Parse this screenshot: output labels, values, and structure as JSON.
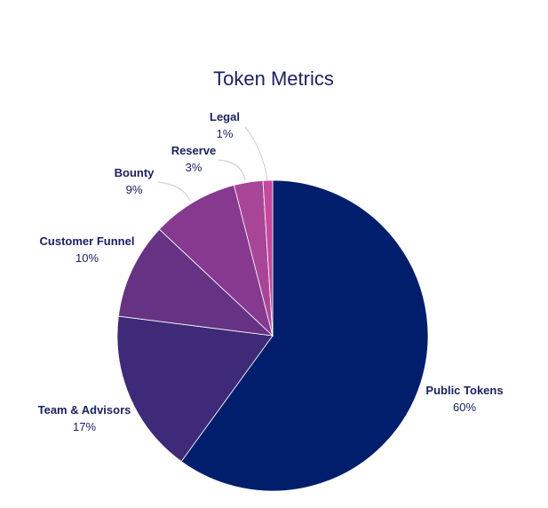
{
  "chart_data": {
    "type": "pie",
    "title": "Token Metrics",
    "start_angle_deg": 0,
    "direction": "clockwise",
    "slices": [
      {
        "label": "Public Tokens",
        "value": 60,
        "display": "60%",
        "color": "#001e6c"
      },
      {
        "label": "Team & Advisors",
        "value": 17,
        "display": "17%",
        "color": "#3e2a78"
      },
      {
        "label": "Customer Funnel",
        "value": 10,
        "display": "10%",
        "color": "#663283"
      },
      {
        "label": "Bounty",
        "value": 9,
        "display": "9%",
        "color": "#86398f"
      },
      {
        "label": "Reserve",
        "value": 3,
        "display": "3%",
        "color": "#a84597"
      },
      {
        "label": "Legal",
        "value": 1,
        "display": "1%",
        "color": "#c4489d"
      }
    ]
  }
}
